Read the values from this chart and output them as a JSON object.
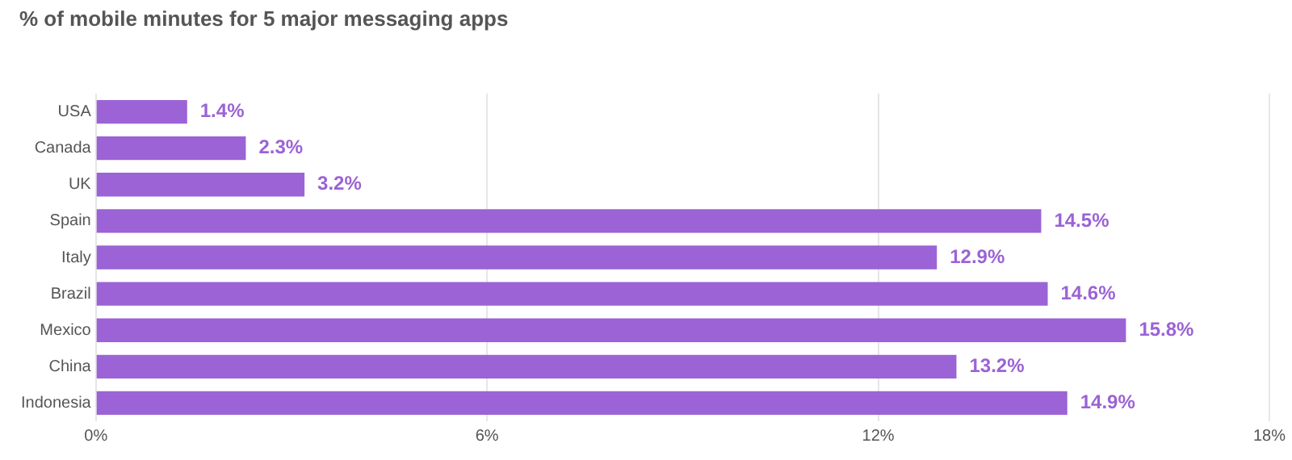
{
  "chart_data": {
    "type": "bar",
    "title": "% of mobile minutes for 5 major messaging apps",
    "orientation": "horizontal",
    "categories": [
      "USA",
      "Canada",
      "UK",
      "Spain",
      "Italy",
      "Brazil",
      "Mexico",
      "China",
      "Indonesia"
    ],
    "values": [
      1.4,
      2.3,
      3.2,
      14.5,
      12.9,
      14.6,
      15.8,
      13.2,
      14.9
    ],
    "value_labels": [
      "1.4%",
      "2.3%",
      "3.2%",
      "14.5%",
      "12.9%",
      "14.6%",
      "15.8%",
      "13.2%",
      "14.9%"
    ],
    "color": "#9b63d5",
    "xlim": [
      0,
      18
    ],
    "xticks": [
      {
        "value": 0,
        "label": "0%"
      },
      {
        "value": 6,
        "label": "6%"
      },
      {
        "value": 12,
        "label": "12%"
      },
      {
        "value": 18,
        "label": "18%"
      }
    ],
    "grid": "x",
    "legend": false
  }
}
